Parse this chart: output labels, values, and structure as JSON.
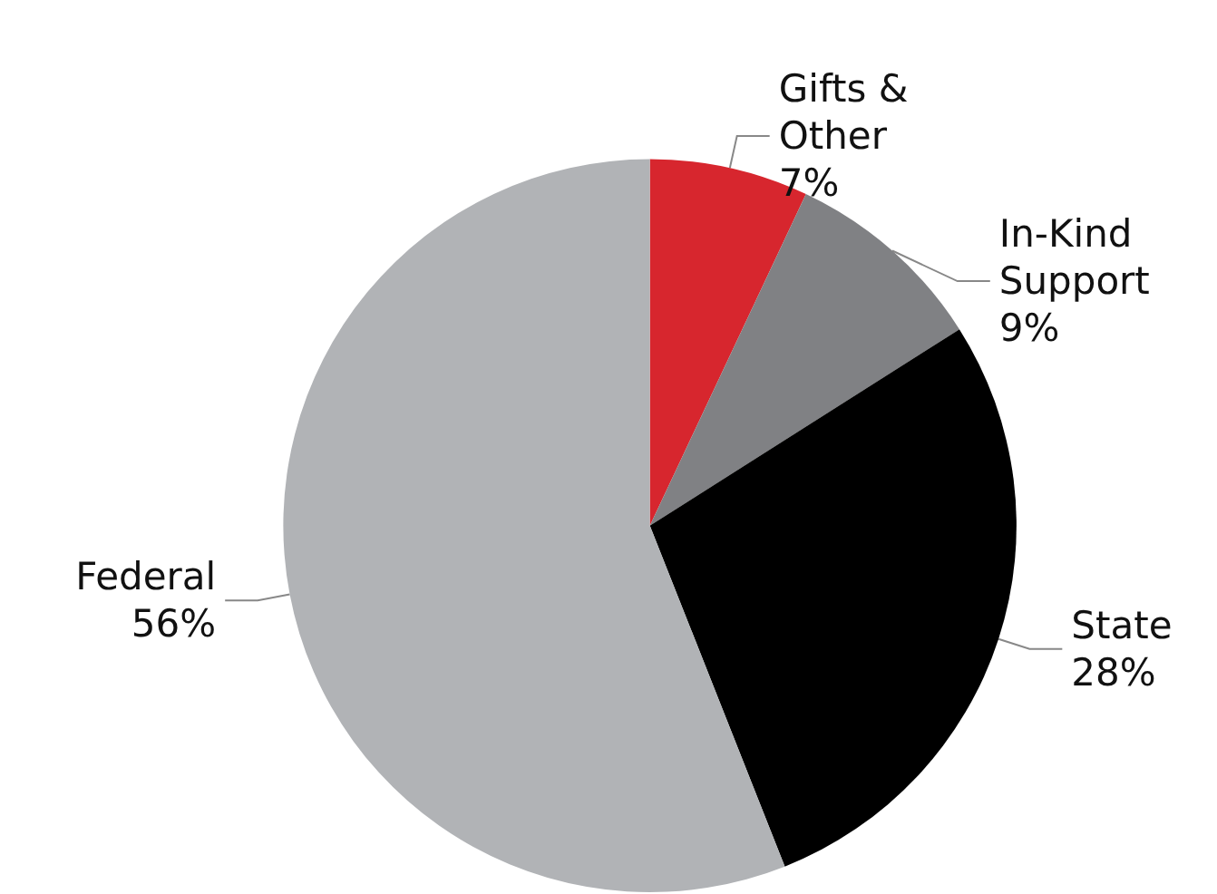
{
  "chart_data": {
    "type": "pie",
    "categories": [
      "Gifts & Other",
      "In-Kind Support",
      "State",
      "Federal"
    ],
    "values": [
      7,
      9,
      28,
      56
    ],
    "colors": [
      "#d7262e",
      "#808184",
      "#000000",
      "#b1b3b6"
    ],
    "value_labels": [
      "7%",
      "9%",
      "28%",
      "56%"
    ],
    "legend": false
  }
}
